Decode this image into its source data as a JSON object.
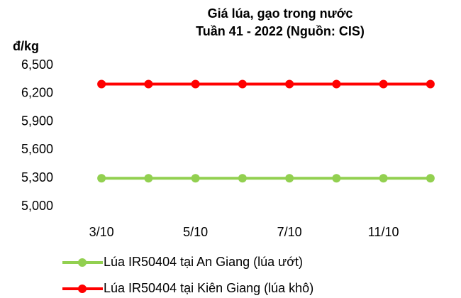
{
  "chart_data": {
    "type": "line",
    "title": "Giá lúa, gạo trong nước",
    "subtitle": "Tuần 41 - 2022 (Nguồn: CIS)",
    "y_label": "đ/kg",
    "categories": [
      "3/10",
      null,
      "5/10",
      null,
      "7/10",
      null,
      "11/10",
      null
    ],
    "series": [
      {
        "name": "Lúa IR50404 tại An Giang (lúa ướt)",
        "color": "#92d050",
        "values": [
          5300,
          5300,
          5300,
          5300,
          5300,
          5300,
          5300,
          5300
        ]
      },
      {
        "name": "Lúa IR50404 tại Kiên Giang (lúa khô)",
        "color": "#ff0000",
        "values": [
          6300,
          6300,
          6300,
          6300,
          6300,
          6300,
          6300,
          6300
        ]
      }
    ],
    "ylim": [
      5000,
      6500
    ],
    "yticks": [
      {
        "value": 5000,
        "label": "5,000"
      },
      {
        "value": 5300,
        "label": "5,300"
      },
      {
        "value": 5600,
        "label": "5,600"
      },
      {
        "value": 5900,
        "label": "5,900"
      },
      {
        "value": 6200,
        "label": "6,200"
      },
      {
        "value": 6500,
        "label": "6,500"
      }
    ],
    "grid": false,
    "legend": "bottom"
  }
}
